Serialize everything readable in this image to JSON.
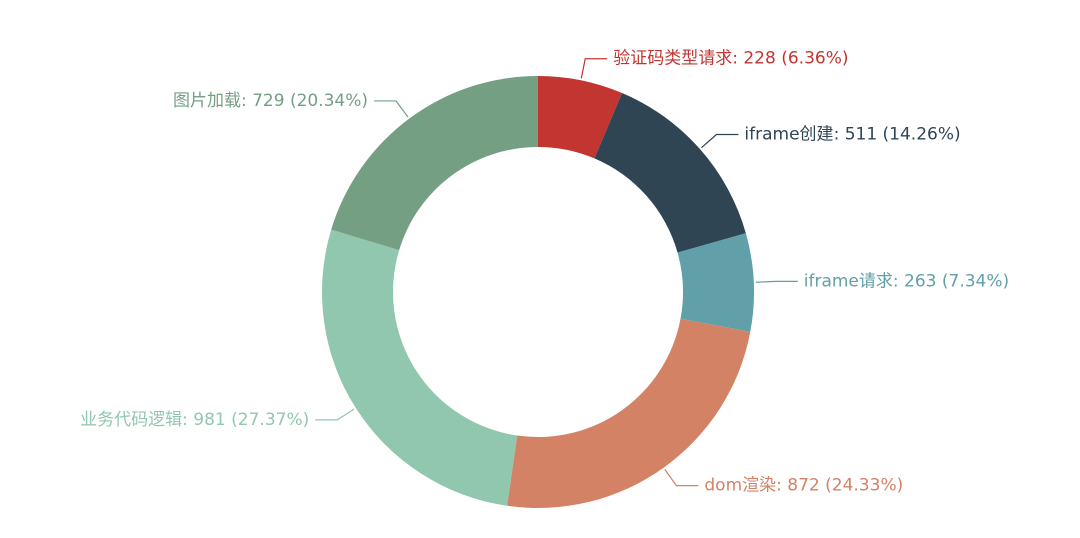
{
  "chart_data": {
    "type": "pie",
    "categories": [
      "验证码类型请求",
      "iframe创建",
      "iframe请求",
      "dom渲染",
      "业务代码逻辑",
      "图片加载"
    ],
    "values": [
      228,
      511,
      263,
      872,
      981,
      729
    ],
    "value_labels": [
      ": 228 (6.36%)",
      ": 511 (14.26%)",
      ": 263 (7.34%)",
      ": 872 (24.33%)",
      ": 981 (27.37%)",
      ": 729 (20.34%)"
    ],
    "colors": [
      "#c23531",
      "#2f4554",
      "#61a0a8",
      "#d48265",
      "#91c7ae",
      "#749f83"
    ]
  }
}
